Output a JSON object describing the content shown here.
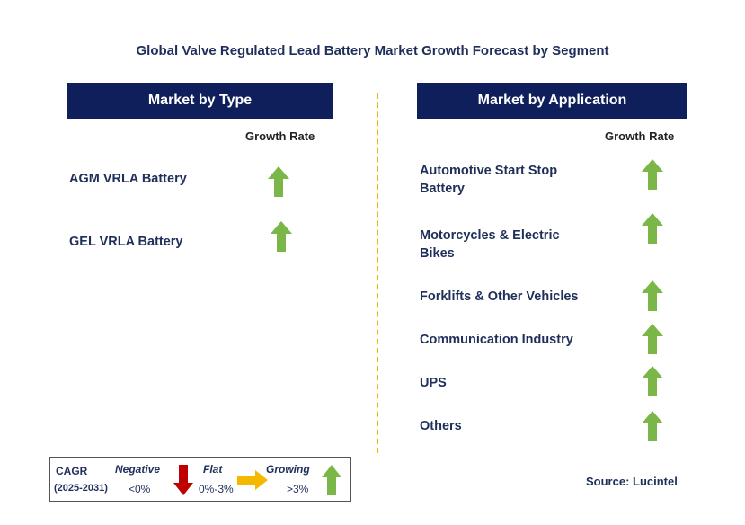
{
  "title": "Global Valve Regulated Lead Battery Market Growth Forecast by Segment",
  "left_panel": {
    "heading": "Market by Type",
    "growth_label": "Growth Rate",
    "items": [
      {
        "label": "AGM VRLA Battery",
        "trend": "growing"
      },
      {
        "label": "GEL VRLA Battery",
        "trend": "growing"
      }
    ]
  },
  "right_panel": {
    "heading": "Market by Application",
    "growth_label": "Growth Rate",
    "items": [
      {
        "label_line1": "Automotive Start Stop",
        "label_line2": "Battery",
        "trend": "growing"
      },
      {
        "label_line1": "Motorcycles & Electric",
        "label_line2": "Bikes",
        "trend": "growing"
      },
      {
        "label": "Forklifts & Other Vehicles",
        "trend": "growing"
      },
      {
        "label": "Communication Industry",
        "trend": "growing"
      },
      {
        "label": "UPS",
        "trend": "growing"
      },
      {
        "label": "Others",
        "trend": "growing"
      }
    ]
  },
  "legend": {
    "cagr_label": "CAGR",
    "period": "(2025-2031)",
    "negative": {
      "label": "Negative",
      "range": "<0%"
    },
    "flat": {
      "label": "Flat",
      "range": "0%-3%"
    },
    "growing": {
      "label": "Growing",
      "range": ">3%"
    }
  },
  "source": "Source: Lucintel",
  "colors": {
    "header_bg": "#0f1f5c",
    "growing": "#7ab648",
    "negative": "#c00000",
    "flat": "#f5b800",
    "divider": "#f0b400"
  }
}
